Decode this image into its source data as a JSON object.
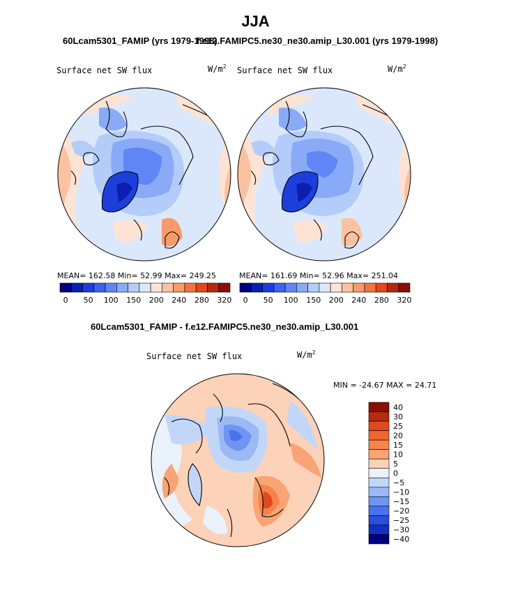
{
  "header": {
    "title": "JJA",
    "case1_title": "60Lcam5301_FAMIP (yrs 1979-1998)",
    "case2_title": "f.e12.FAMIPC5.ne30_ne30.amip_L30.001 (yrs 1979-1998)",
    "diff_title": "60Lcam5301_FAMIP - f.e12.FAMIPC5.ne30_ne30.amip_L30.001"
  },
  "panels": {
    "left": {
      "variable": "Surface net SW flux",
      "units_base": "W/m",
      "units_exp": "2",
      "stats": "MEAN= 162.58  Min=   52.99  Max= 249.25"
    },
    "right": {
      "variable": "Surface net SW flux",
      "units_base": "W/m",
      "units_exp": "2",
      "stats": "MEAN= 161.69  Min=   52.96  Max= 251.04"
    },
    "diff": {
      "variable": "Surface net SW flux",
      "units_base": "W/m",
      "units_exp": "2",
      "stats": "MIN = -24.67 MAX =  24.71"
    }
  },
  "colorbars": {
    "abs": {
      "colors": [
        "#000080",
        "#0a1fb0",
        "#1c3fdc",
        "#3c62f0",
        "#5f86f4",
        "#89aaf6",
        "#b4ccfa",
        "#dbe8fb",
        "#fde3d4",
        "#fbc2a2",
        "#f89a6c",
        "#f3733e",
        "#e0481e",
        "#b52a10",
        "#8a0f05"
      ],
      "labels": [
        "0",
        "50",
        "100",
        "150",
        "200",
        "240",
        "280",
        "320"
      ]
    },
    "diff": {
      "colors": [
        "#8a0f05",
        "#b52a10",
        "#e0481e",
        "#f3662f",
        "#f6844b",
        "#f9a474",
        "#fcd2b8",
        "#eaf2fb",
        "#c2d7f8",
        "#9ab9f5",
        "#6f94f2",
        "#4b72ee",
        "#2a4ee0",
        "#1430c0",
        "#000080"
      ],
      "labels": [
        "40",
        "30",
        "25",
        "20",
        "15",
        "10",
        "5",
        "0",
        "−5",
        "−10",
        "−15",
        "−20",
        "−25",
        "−30",
        "−40"
      ]
    }
  }
}
